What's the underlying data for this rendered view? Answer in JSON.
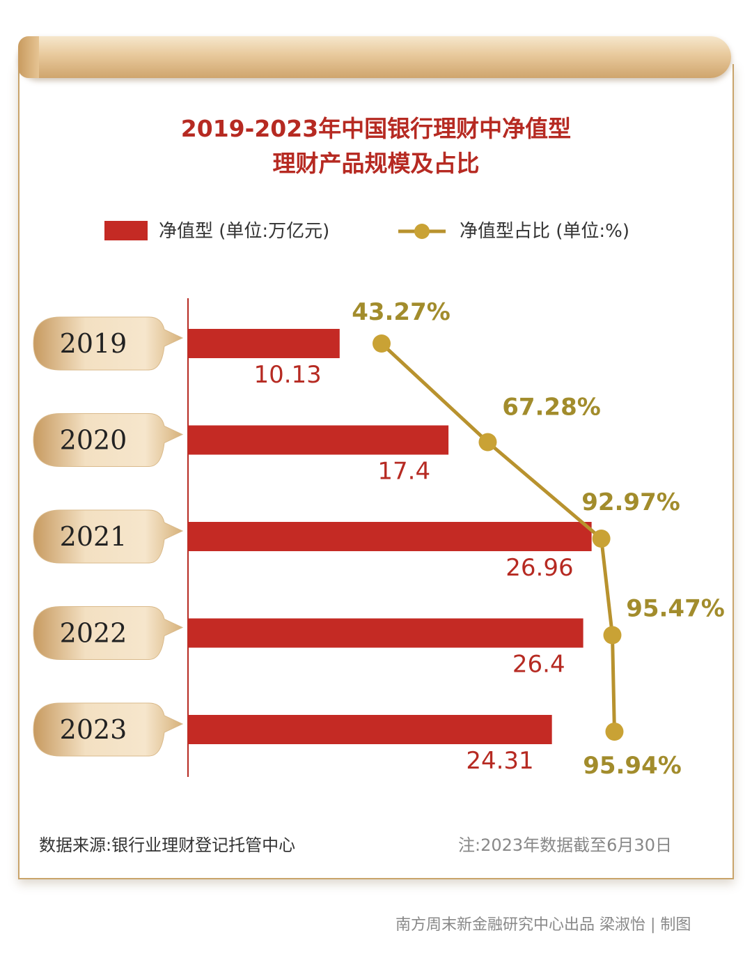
{
  "title_line1": "2019-2023年中国银行理财中净值型",
  "title_line2": "理财产品规模及占比",
  "legend": {
    "bar_label": "净值型 (单位:万亿元)",
    "line_label": "净值型占比 (单位:%)"
  },
  "chart_data": {
    "type": "bar",
    "orientation": "horizontal",
    "title": "2019-2023年中国银行理财中净值型理财产品规模及占比",
    "categories": [
      "2019",
      "2020",
      "2021",
      "2022",
      "2023"
    ],
    "series": [
      {
        "name": "净值型 (单位:万亿元)",
        "type": "bar",
        "values": [
          10.13,
          17.4,
          26.96,
          26.4,
          24.31
        ],
        "labels": [
          "10.13",
          "17.4",
          "26.96",
          "26.4",
          "24.31"
        ]
      },
      {
        "name": "净值型占比 (单位:%)",
        "type": "line",
        "values": [
          43.27,
          67.28,
          92.97,
          95.47,
          95.94
        ],
        "labels": [
          "43.27%",
          "67.28%",
          "92.97%",
          "95.47%",
          "95.94%"
        ]
      }
    ],
    "xlim": [
      0,
      28
    ],
    "legend_position": "top",
    "grid": false,
    "colors": {
      "bar": "#c42a24",
      "line": "#b8922e",
      "label_bar": "#b62a22",
      "label_line": "#a28c2c",
      "year_tag": "#e2c08e"
    }
  },
  "footer": {
    "source": "数据来源:银行业理财登记托管中心",
    "note": "注:2023年数据截至6月30日",
    "credit": "南方周末新金融研究中心出品  梁淑怡 | 制图"
  }
}
